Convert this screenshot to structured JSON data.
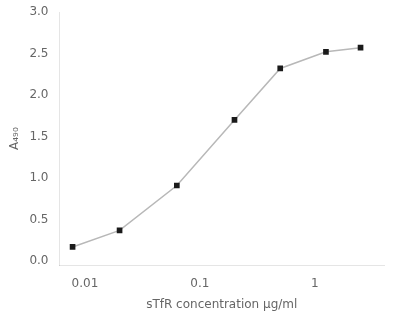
{
  "chart_data": {
    "type": "line",
    "x": [
      0.0078,
      0.02,
      0.063,
      0.2,
      0.5,
      1.25,
      2.5
    ],
    "series": [
      {
        "type": "line",
        "color": "#b8b8b8",
        "values": [
          0.17,
          0.37,
          0.91,
          1.7,
          2.32,
          2.52,
          2.57
        ]
      },
      {
        "type": "scatter",
        "color": "#1a1a1a",
        "marker": "square",
        "values": [
          0.17,
          0.37,
          0.91,
          1.7,
          2.32,
          2.52,
          2.57
        ]
      }
    ],
    "xlabel": "sTfR concentration μg/ml",
    "ylabel": "A₄₉₀",
    "log": "x",
    "xlim": [
      0.006,
      4.0
    ],
    "xticks": [
      0.01,
      0.1,
      1
    ],
    "ylim": [
      -0.05,
      3.0
    ],
    "yticks": [
      {
        "value": 0.0,
        "label": "0.0"
      },
      {
        "value": 0.5,
        "label": "0.5"
      },
      {
        "value": 1.0,
        "label": "1.0"
      },
      {
        "value": 1.5,
        "label": "1.5"
      },
      {
        "value": 2.0,
        "label": "2.0"
      },
      {
        "value": 2.5,
        "label": "2.5"
      },
      {
        "value": 3.0,
        "label": "3.0"
      }
    ],
    "grid": false
  }
}
